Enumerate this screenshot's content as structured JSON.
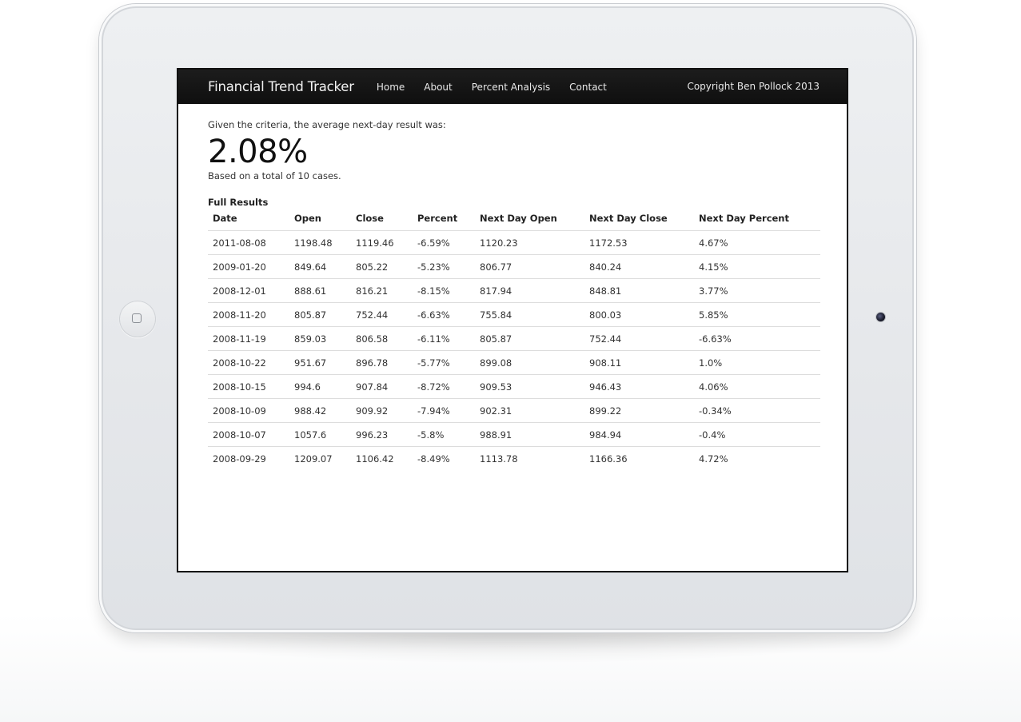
{
  "navbar": {
    "brand": "Financial Trend Tracker",
    "items": [
      "Home",
      "About",
      "Percent Analysis",
      "Contact"
    ],
    "copyright": "Copyright Ben Pollock 2013"
  },
  "summary": {
    "intro": "Given the criteria, the average next-day result was:",
    "average": "2.08%",
    "cases": "Based on a total of 10 cases."
  },
  "results": {
    "title": "Full Results",
    "columns": [
      "Date",
      "Open",
      "Close",
      "Percent",
      "Next Day Open",
      "Next Day Close",
      "Next Day Percent"
    ],
    "rows": [
      [
        "2011-08-08",
        "1198.48",
        "1119.46",
        "-6.59%",
        "1120.23",
        "1172.53",
        "4.67%"
      ],
      [
        "2009-01-20",
        "849.64",
        "805.22",
        "-5.23%",
        "806.77",
        "840.24",
        "4.15%"
      ],
      [
        "2008-12-01",
        "888.61",
        "816.21",
        "-8.15%",
        "817.94",
        "848.81",
        "3.77%"
      ],
      [
        "2008-11-20",
        "805.87",
        "752.44",
        "-6.63%",
        "755.84",
        "800.03",
        "5.85%"
      ],
      [
        "2008-11-19",
        "859.03",
        "806.58",
        "-6.11%",
        "805.87",
        "752.44",
        "-6.63%"
      ],
      [
        "2008-10-22",
        "951.67",
        "896.78",
        "-5.77%",
        "899.08",
        "908.11",
        "1.0%"
      ],
      [
        "2008-10-15",
        "994.6",
        "907.84",
        "-8.72%",
        "909.53",
        "946.43",
        "4.06%"
      ],
      [
        "2008-10-09",
        "988.42",
        "909.92",
        "-7.94%",
        "902.31",
        "899.22",
        "-0.34%"
      ],
      [
        "2008-10-07",
        "1057.6",
        "996.23",
        "-5.8%",
        "988.91",
        "984.94",
        "-0.4%"
      ],
      [
        "2008-09-29",
        "1209.07",
        "1106.42",
        "-8.49%",
        "1113.78",
        "1166.36",
        "4.72%"
      ]
    ]
  }
}
